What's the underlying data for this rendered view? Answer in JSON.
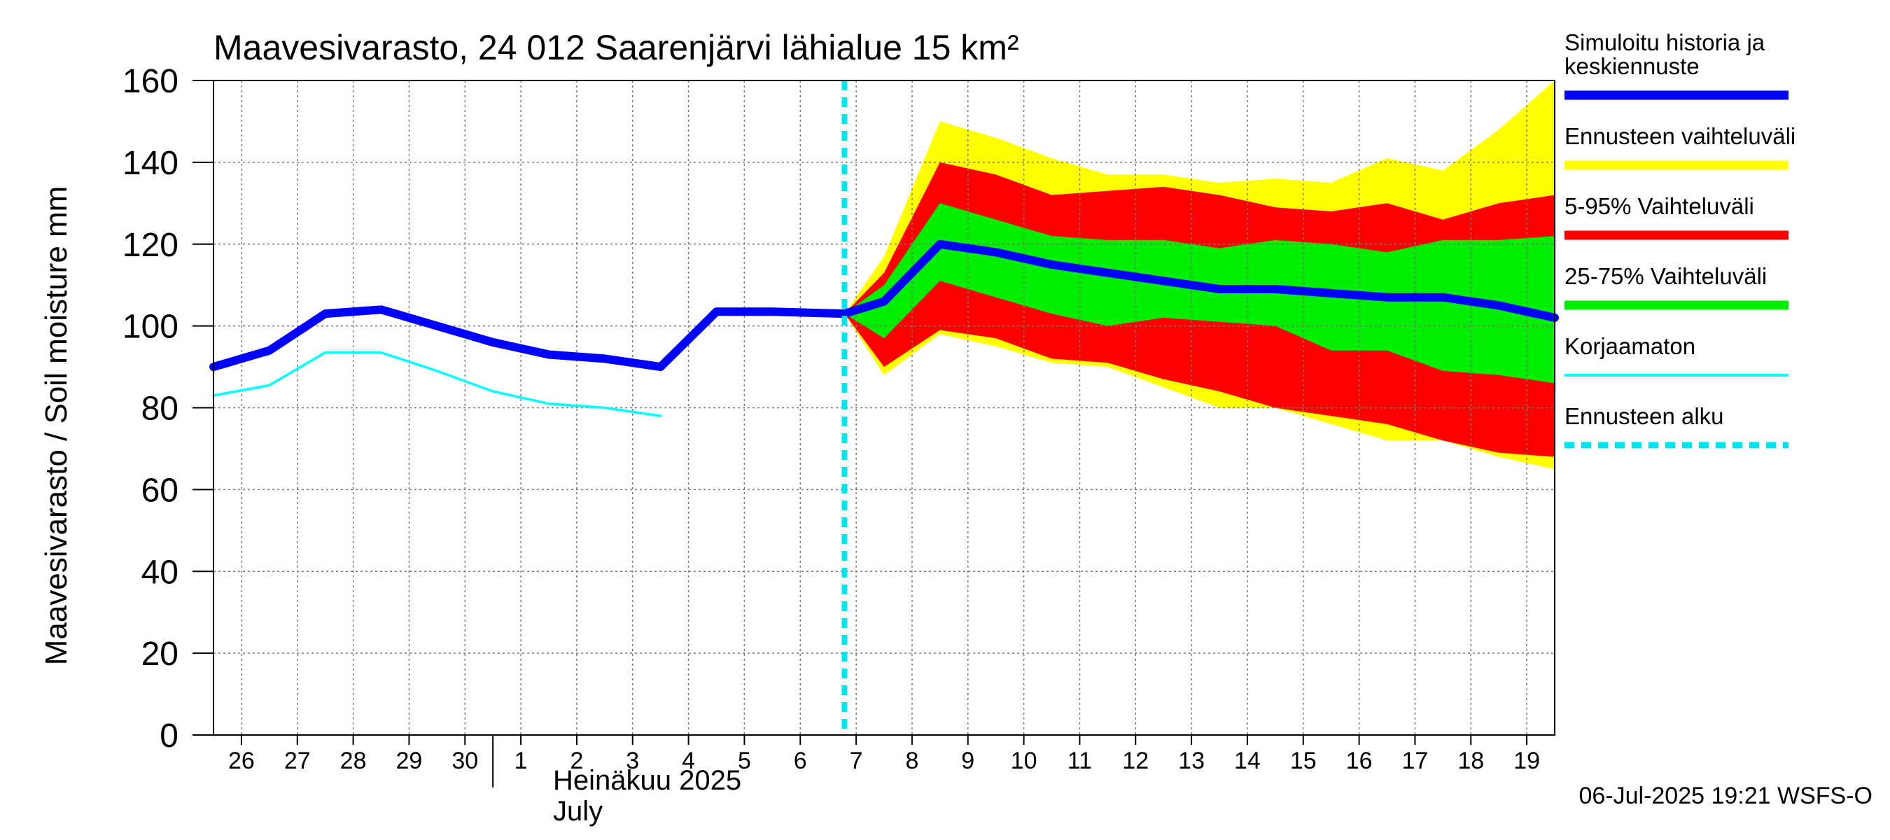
{
  "chart_data": {
    "type": "area",
    "title": "Maavesivarasto, 24 012 Saarenjärvi lähialue 15 km²",
    "ylabel": "Maavesivarasto / Soil moisture   mm",
    "ylim": [
      0,
      160
    ],
    "yticks": [
      0,
      20,
      40,
      60,
      80,
      100,
      120,
      140,
      160
    ],
    "x_range": [
      "2025-06-25T12:00",
      "2025-07-19T12:00"
    ],
    "x_tick_labels": [
      "26",
      "27",
      "28",
      "29",
      "30",
      "1",
      "2",
      "3",
      "4",
      "5",
      "6",
      "7",
      "8",
      "9",
      "10",
      "11",
      "12",
      "13",
      "14",
      "15",
      "16",
      "17",
      "18",
      "19"
    ],
    "x_tick_dates": [
      "2025-06-26",
      "2025-06-27",
      "2025-06-28",
      "2025-06-29",
      "2025-06-30",
      "2025-07-01",
      "2025-07-02",
      "2025-07-03",
      "2025-07-04",
      "2025-07-05",
      "2025-07-06",
      "2025-07-07",
      "2025-07-08",
      "2025-07-09",
      "2025-07-10",
      "2025-07-11",
      "2025-07-12",
      "2025-07-13",
      "2025-07-14",
      "2025-07-15",
      "2025-07-16",
      "2025-07-17",
      "2025-07-18",
      "2025-07-19"
    ],
    "month_label_fi": "Heinäkuu  2025",
    "month_label_en": "July",
    "month_start": "2025-07-01",
    "forecast_start": "2025-07-06T19:00",
    "timestamp": "06-Jul-2025 19:21 WSFS-O",
    "series": [
      {
        "name": "Ennusteen vaihteluväli",
        "kind": "band",
        "color": "#ffff00",
        "x": [
          "2025-07-06T19:00",
          "2025-07-07T12:00",
          "2025-07-08T12:00",
          "2025-07-09T12:00",
          "2025-07-10T12:00",
          "2025-07-11T12:00",
          "2025-07-12T12:00",
          "2025-07-13T12:00",
          "2025-07-14T12:00",
          "2025-07-15T12:00",
          "2025-07-16T12:00",
          "2025-07-17T12:00",
          "2025-07-18T12:00",
          "2025-07-19T12:00"
        ],
        "upper": [
          103,
          117,
          150,
          146,
          141,
          137,
          137,
          135,
          136,
          135,
          141,
          138,
          148,
          160
        ],
        "lower": [
          103,
          88,
          98,
          95,
          91,
          90,
          85,
          80,
          80,
          76,
          72,
          72,
          68,
          65
        ]
      },
      {
        "name": "5-95% Vaihteluväli",
        "kind": "band",
        "color": "#ff0000",
        "x": [
          "2025-07-06T19:00",
          "2025-07-07T12:00",
          "2025-07-08T12:00",
          "2025-07-09T12:00",
          "2025-07-10T12:00",
          "2025-07-11T12:00",
          "2025-07-12T12:00",
          "2025-07-13T12:00",
          "2025-07-14T12:00",
          "2025-07-15T12:00",
          "2025-07-16T12:00",
          "2025-07-17T12:00",
          "2025-07-18T12:00",
          "2025-07-19T12:00"
        ],
        "upper": [
          103,
          113,
          140,
          137,
          132,
          133,
          134,
          132,
          129,
          128,
          130,
          126,
          130,
          132
        ],
        "lower": [
          103,
          90,
          99,
          97,
          92,
          91,
          87,
          84,
          80,
          78,
          76,
          72,
          69,
          68
        ]
      },
      {
        "name": "25-75% Vaihteluväli",
        "kind": "band",
        "color": "#00ee00",
        "x": [
          "2025-07-06T19:00",
          "2025-07-07T12:00",
          "2025-07-08T12:00",
          "2025-07-09T12:00",
          "2025-07-10T12:00",
          "2025-07-11T12:00",
          "2025-07-12T12:00",
          "2025-07-13T12:00",
          "2025-07-14T12:00",
          "2025-07-15T12:00",
          "2025-07-16T12:00",
          "2025-07-17T12:00",
          "2025-07-18T12:00",
          "2025-07-19T12:00"
        ],
        "upper": [
          103,
          110,
          130,
          126,
          122,
          121,
          121,
          119,
          121,
          120,
          118,
          121,
          121,
          122
        ],
        "lower": [
          103,
          97,
          111,
          107,
          103,
          100,
          102,
          101,
          100,
          94,
          94,
          89,
          88,
          86
        ]
      },
      {
        "name": "Simuloitu historia ja keskiennuste",
        "kind": "line",
        "color": "#0000ff",
        "x": [
          "2025-06-25T12:00",
          "2025-06-26T12:00",
          "2025-06-27T12:00",
          "2025-06-28T12:00",
          "2025-06-29T12:00",
          "2025-06-30T12:00",
          "2025-07-01T12:00",
          "2025-07-02T12:00",
          "2025-07-03T12:00",
          "2025-07-04T12:00",
          "2025-07-05T12:00",
          "2025-07-06T19:00",
          "2025-07-07T12:00",
          "2025-07-08T12:00",
          "2025-07-09T12:00",
          "2025-07-10T12:00",
          "2025-07-11T12:00",
          "2025-07-12T12:00",
          "2025-07-13T12:00",
          "2025-07-14T12:00",
          "2025-07-15T12:00",
          "2025-07-16T12:00",
          "2025-07-17T12:00",
          "2025-07-18T12:00",
          "2025-07-19T12:00"
        ],
        "y": [
          90,
          94,
          103,
          104,
          100,
          96,
          93,
          92,
          90,
          103.5,
          103.5,
          103,
          106,
          120,
          118,
          115,
          113,
          111,
          109,
          109,
          108,
          107,
          107,
          105,
          102
        ]
      },
      {
        "name": "Korjaamaton",
        "kind": "line",
        "color": "#00ffff",
        "x": [
          "2025-06-25T12:00",
          "2025-06-26T12:00",
          "2025-06-27T12:00",
          "2025-06-28T12:00",
          "2025-06-29T12:00",
          "2025-06-30T12:00",
          "2025-07-01T12:00",
          "2025-07-02T12:00",
          "2025-07-03T12:00"
        ],
        "y": [
          83,
          85.5,
          93.5,
          93.5,
          89,
          84,
          81,
          80,
          78
        ]
      }
    ],
    "legend": [
      {
        "label": "Simuloitu historia ja keskiennuste",
        "color": "#0000ff",
        "style": "thick"
      },
      {
        "label": "Ennusteen vaihteluväli",
        "color": "#ffff00",
        "style": "thick"
      },
      {
        "label": "5-95% Vaihteluväli",
        "color": "#ff0000",
        "style": "thick"
      },
      {
        "label": "25-75% Vaihteluväli",
        "color": "#00ee00",
        "style": "thick"
      },
      {
        "label": "Korjaamaton",
        "color": "#00ffff",
        "style": "thin"
      },
      {
        "label": "Ennusteen alku",
        "color": "#00e5ee",
        "style": "dashed"
      }
    ],
    "legend_position": "right",
    "grid": true
  }
}
